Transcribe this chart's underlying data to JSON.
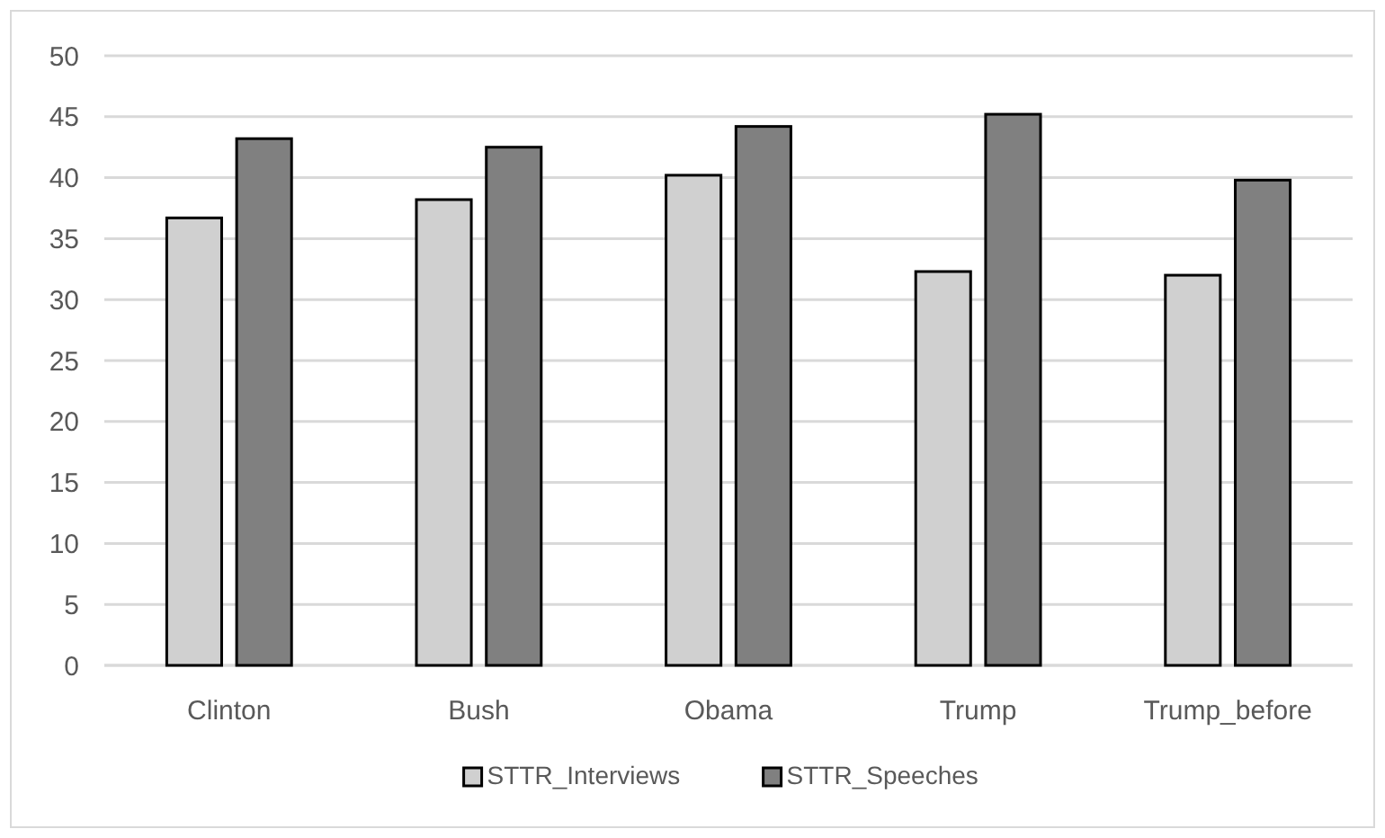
{
  "chart_data": {
    "type": "bar",
    "categories": [
      "Clinton",
      "Bush",
      "Obama",
      "Trump",
      "Trump_before"
    ],
    "series": [
      {
        "name": "STTR_Interviews",
        "color": "#d0d0d0",
        "values": [
          36.7,
          38.2,
          40.2,
          32.3,
          32.0
        ]
      },
      {
        "name": "STTR_Speeches",
        "color": "#808080",
        "values": [
          43.2,
          42.5,
          44.2,
          45.2,
          39.8
        ]
      }
    ],
    "ylim": [
      0,
      50
    ],
    "yticks": [
      0,
      5,
      10,
      15,
      20,
      25,
      30,
      35,
      40,
      45,
      50
    ],
    "grid": "y",
    "legend": "bottom"
  }
}
